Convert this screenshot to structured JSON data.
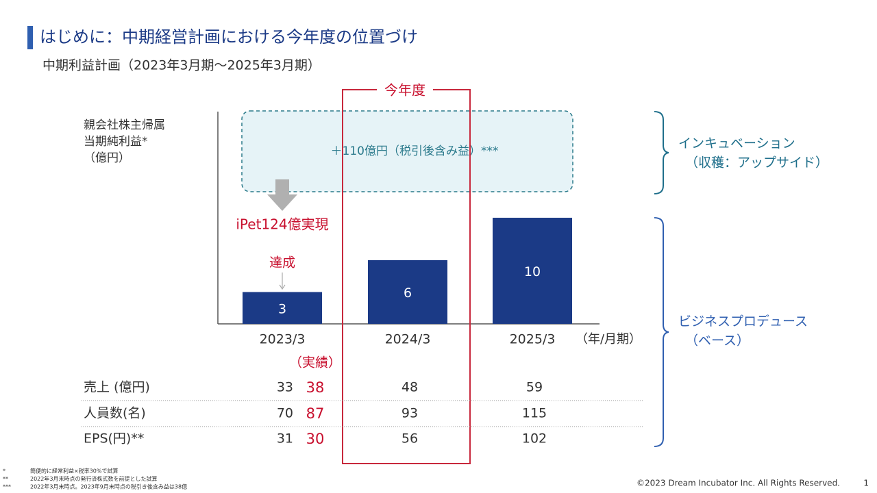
{
  "header": {
    "title": "はじめに：中期経営計画における今年度の位置づけ",
    "subtitle": "中期利益計画（2023年3月期～2025年3月期）"
  },
  "chart_data": {
    "type": "bar",
    "ylabel": [
      "親会社株主帰属",
      "当期純利益*",
      "（億円）"
    ],
    "categories": [
      "2023/3",
      "2024/3",
      "2025/3"
    ],
    "xlabel": "（年/月期）",
    "values": [
      3,
      6,
      10
    ],
    "color": "#1b3a86",
    "ylim": [
      0,
      20
    ],
    "annotations": {
      "current_year": "今年度",
      "unrealized_gain": "＋110億円（税引後含み益）***",
      "ipet": "iPet124億実現",
      "achieved": "達成",
      "actual": "（実績）"
    }
  },
  "segments": {
    "incubation": [
      "インキュベーション",
      "（収穫：アップサイド）"
    ],
    "business_produce": [
      "ビジネスプロデュース",
      "（ベース）"
    ]
  },
  "table": {
    "rows": [
      [
        "売上 (億円)",
        33,
        38,
        48,
        59
      ],
      [
        "人員数(名)",
        70,
        87,
        93,
        115
      ],
      [
        "EPS(円)**",
        31,
        30,
        56,
        102
      ]
    ]
  },
  "footnotes": [
    {
      "mark": "*",
      "text": "簡便的に経常利益×税率30%で試算"
    },
    {
      "mark": "**",
      "text": "2022年3月末時点の発行済株式数を前提とした試算"
    },
    {
      "mark": "***",
      "text": "2022年3月末時点。2023年9月末時点の税引き後含み益は38億"
    }
  ],
  "footer": {
    "copyright": "©2023 Dream Incubator Inc. All Rights Reserved.",
    "page": "1"
  }
}
